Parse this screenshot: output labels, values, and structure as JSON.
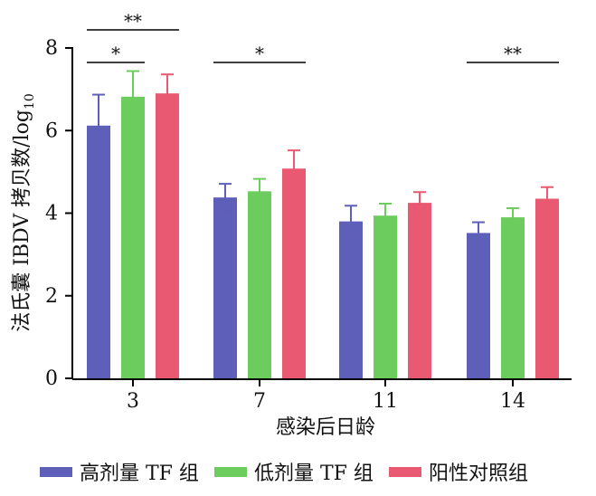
{
  "chart_data": {
    "type": "bar",
    "xlabel": "感染后日龄",
    "ylabel_main": "法氏囊 IBDV 拷贝数/log",
    "ylabel_sub": "10",
    "ylim": [
      0,
      8
    ],
    "yticks": [
      "0",
      "2",
      "4",
      "6",
      "8"
    ],
    "categories": [
      "3",
      "7",
      "11",
      "14"
    ],
    "series": [
      {
        "name": "高剂量 TF 组",
        "color": "#5e5fb8",
        "values": [
          6.12,
          4.38,
          3.8,
          3.52
        ],
        "errors": [
          0.75,
          0.33,
          0.38,
          0.26
        ]
      },
      {
        "name": "低剂量 TF 组",
        "color": "#6dcc5e",
        "values": [
          6.82,
          4.53,
          3.94,
          3.9
        ],
        "errors": [
          0.62,
          0.3,
          0.29,
          0.22
        ]
      },
      {
        "name": "阳性对照组",
        "color": "#e95a72",
        "values": [
          6.9,
          5.08,
          4.25,
          4.35
        ],
        "errors": [
          0.46,
          0.44,
          0.26,
          0.28
        ]
      }
    ],
    "significance": [
      {
        "label": "**",
        "category": "3",
        "from_series": 0,
        "to_series": 2,
        "level": 2
      },
      {
        "label": "*",
        "category": "3",
        "from_series": 0,
        "to_series": 1,
        "level": 1
      },
      {
        "label": "*",
        "category": "7",
        "from_series": 0,
        "to_series": 2,
        "level": 1
      },
      {
        "label": "**",
        "category": "14",
        "from_series": 0,
        "to_series": 2,
        "level": 1
      }
    ]
  }
}
